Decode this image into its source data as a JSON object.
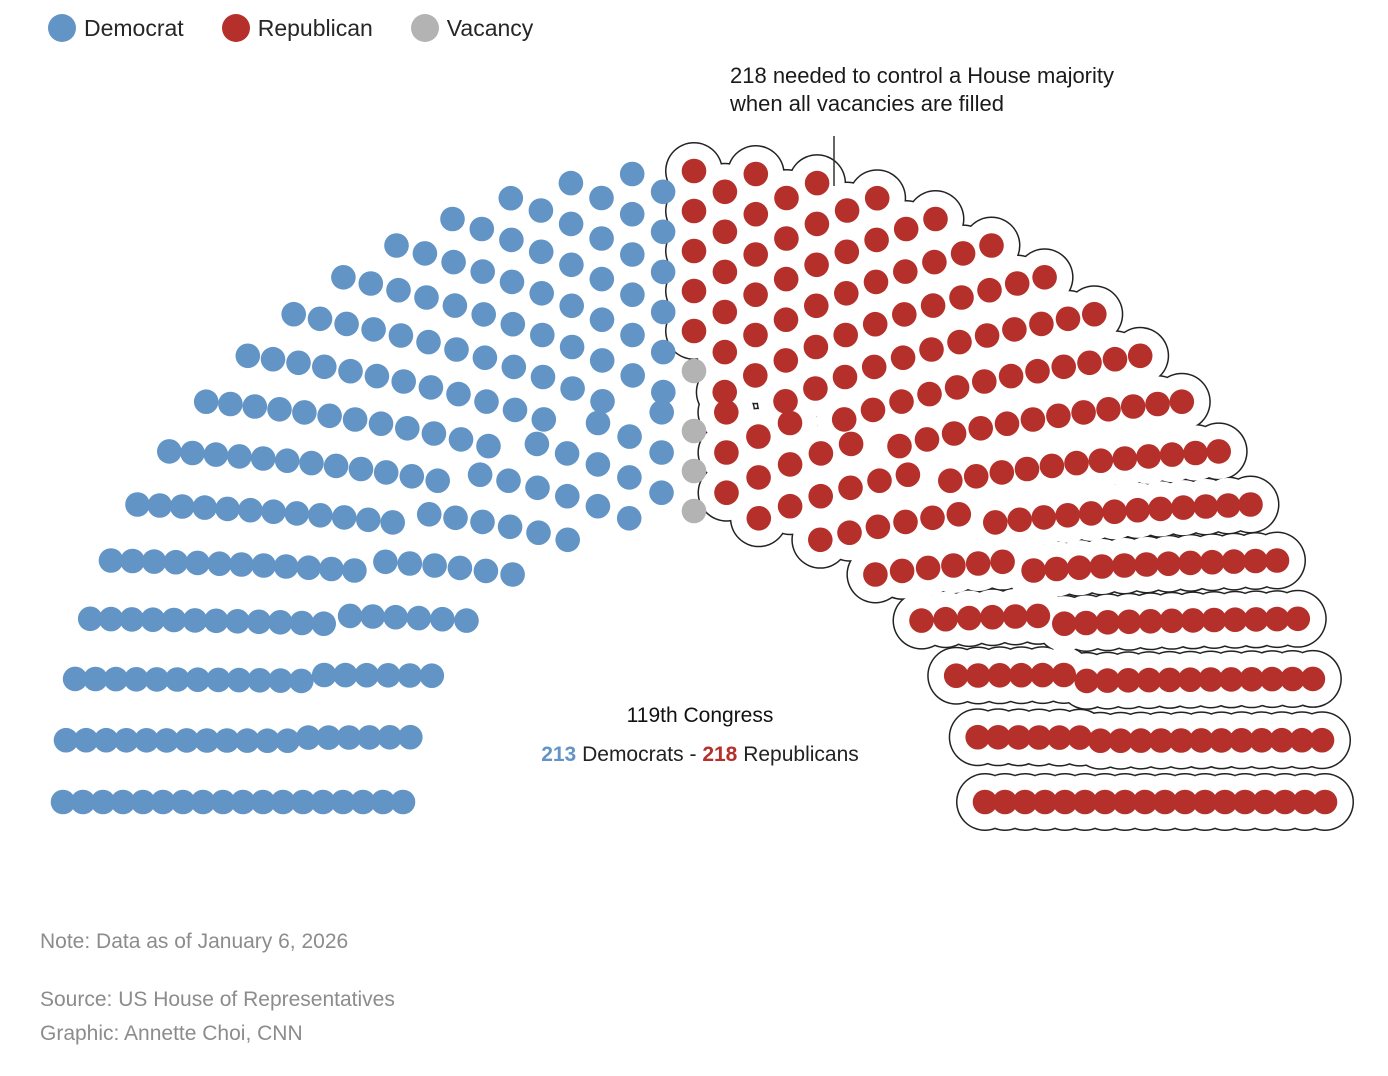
{
  "legend": [
    {
      "label": "Democrat",
      "color": "#6394c6"
    },
    {
      "label": "Republican",
      "color": "#b5302a"
    },
    {
      "label": "Vacancy",
      "color": "#b3b3b3"
    }
  ],
  "annotation": {
    "line1": "218 needed to control a House majority",
    "line2": "when all vacancies are filled"
  },
  "chart_data": {
    "type": "parliament",
    "total_seats": 435,
    "series": [
      {
        "name": "Democrat",
        "value": 213,
        "color": "#6394c6"
      },
      {
        "name": "Vacancy",
        "value": 4,
        "color": "#b3b3b3"
      },
      {
        "name": "Republican",
        "value": 218,
        "color": "#b5302a"
      }
    ],
    "majority_threshold": 218,
    "title": "119th Congress",
    "counts": {
      "dem_num": "213",
      "dem_label": "Democrats",
      "sep": "-",
      "rep_num": "218",
      "rep_label": "Republicans"
    }
  },
  "footer": {
    "note": "Note: Data as of January 6, 2026",
    "source": "Source: US House of Representatives",
    "graphic": "Graphic: Annette Choi, CNN"
  }
}
